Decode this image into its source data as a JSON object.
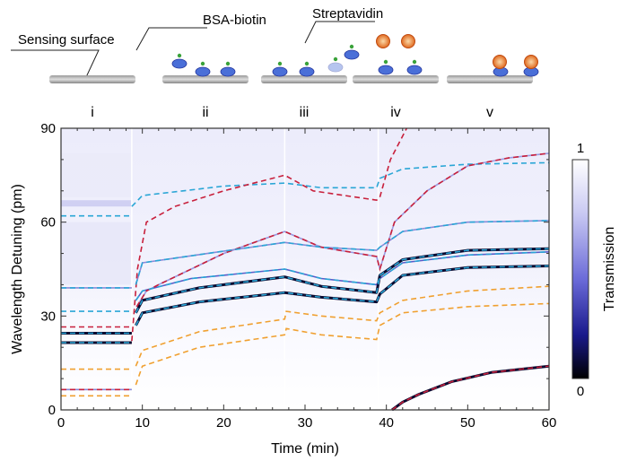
{
  "schematic": {
    "labels": {
      "surface": "Sensing surface",
      "bsa": "BSA-biotin",
      "strep": "Streptavidin"
    },
    "stages": [
      "i",
      "ii",
      "iii",
      "iv",
      "v"
    ]
  },
  "chart_data": {
    "type": "heatmap",
    "xlabel": "Time (min)",
    "ylabel": "Wavelength Detuning (pm)",
    "xlim": [
      0,
      60
    ],
    "ylim": [
      0,
      90
    ],
    "xticks": [
      0,
      10,
      20,
      30,
      40,
      50,
      60
    ],
    "yticks": [
      0,
      30,
      60,
      90
    ],
    "colorbar": {
      "label": "Transmission",
      "min": "0",
      "max": "1",
      "colors": [
        "#000000",
        "#1a1a8c",
        "#6a6ad8",
        "#c8c8f2",
        "#ffffff"
      ]
    },
    "stage_boundaries_min": [
      8.7,
      27.5,
      39
    ],
    "series": [
      {
        "color": "#2aa6d6",
        "trace": null,
        "points": [
          [
            0,
            62
          ],
          [
            8.7,
            62
          ]
        ]
      },
      {
        "color": "#2aa6d6",
        "trace": "#8a8ad8",
        "points": [
          [
            0,
            39
          ],
          [
            8.7,
            39
          ]
        ]
      },
      {
        "color": "#2aa6d6",
        "trace": null,
        "points": [
          [
            0,
            31.5
          ],
          [
            8.7,
            31.5
          ]
        ]
      },
      {
        "color": "#c8203c",
        "trace": null,
        "points": [
          [
            0,
            26.5
          ],
          [
            8.7,
            26.5
          ]
        ]
      },
      {
        "color": "#2aa6d6",
        "trace": "#0a0a30",
        "points": [
          [
            0,
            24.5
          ],
          [
            8.7,
            24.5
          ]
        ]
      },
      {
        "color": "#2aa6d6",
        "trace": "#0a0a30",
        "points": [
          [
            0,
            21.5
          ],
          [
            8.7,
            21.5
          ]
        ]
      },
      {
        "color": "#f0a030",
        "trace": null,
        "points": [
          [
            0,
            13
          ],
          [
            8.7,
            13
          ]
        ]
      },
      {
        "color": "#c8203c",
        "trace": "#8a8ad8",
        "points": [
          [
            0,
            6.5
          ],
          [
            8.7,
            6.5
          ]
        ]
      },
      {
        "color": "#f0a030",
        "trace": null,
        "points": [
          [
            0,
            4.5
          ],
          [
            8.7,
            4.5
          ]
        ]
      },
      {
        "color": "#2aa6d6",
        "trace": null,
        "points": [
          [
            8.7,
            65
          ],
          [
            10,
            68.5
          ],
          [
            15,
            70
          ],
          [
            20,
            71.5
          ],
          [
            27.5,
            72.5
          ],
          [
            32,
            71
          ],
          [
            38.8,
            71
          ],
          [
            39.2,
            74
          ],
          [
            42,
            77
          ],
          [
            50,
            78.5
          ],
          [
            60,
            79
          ]
        ]
      },
      {
        "color": "#c8203c",
        "trace": null,
        "points": [
          [
            8.7,
            22
          ],
          [
            9.4,
            45
          ],
          [
            10.5,
            60
          ],
          [
            14,
            65
          ],
          [
            20,
            70
          ],
          [
            27.5,
            75
          ],
          [
            31,
            70
          ],
          [
            38.8,
            67
          ],
          [
            39.2,
            68
          ],
          [
            40.5,
            80
          ],
          [
            42.5,
            90
          ]
        ]
      },
      {
        "color": "#c8203c",
        "trace": "#9a9ae0",
        "points": [
          [
            9.3,
            33
          ],
          [
            10.5,
            38
          ],
          [
            12,
            40
          ],
          [
            16,
            45
          ],
          [
            20,
            50
          ],
          [
            27.5,
            57
          ],
          [
            32,
            52
          ],
          [
            38.8,
            49
          ],
          [
            39.2,
            45
          ],
          [
            41,
            60
          ],
          [
            45,
            70
          ],
          [
            50,
            78
          ],
          [
            55,
            80.5
          ],
          [
            60,
            82
          ]
        ]
      },
      {
        "color": "#2aa6d6",
        "trace": "#8a8ad8",
        "points": [
          [
            9.2,
            40
          ],
          [
            10,
            47
          ],
          [
            14,
            48.5
          ],
          [
            18,
            50
          ],
          [
            27.5,
            53.5
          ],
          [
            32,
            52
          ],
          [
            38.8,
            51
          ],
          [
            39.2,
            52
          ],
          [
            42,
            57
          ],
          [
            50,
            60
          ],
          [
            60,
            60.5
          ]
        ]
      },
      {
        "color": "#2aa6d6",
        "trace": "#5a5ac8",
        "points": [
          [
            9.2,
            35
          ],
          [
            10,
            38
          ],
          [
            16,
            42
          ],
          [
            27.5,
            45
          ],
          [
            32,
            42
          ],
          [
            38.8,
            40
          ],
          [
            39.2,
            42
          ],
          [
            42,
            47
          ],
          [
            50,
            49.5
          ],
          [
            60,
            50.5
          ]
        ]
      },
      {
        "color": "#2aa6d6",
        "trace": "#0a0a30",
        "points": [
          [
            9.2,
            31
          ],
          [
            10,
            35
          ],
          [
            17,
            39
          ],
          [
            27.5,
            42.5
          ],
          [
            32,
            39.5
          ],
          [
            38.8,
            37.5
          ],
          [
            39.2,
            43
          ],
          [
            42,
            48
          ],
          [
            50,
            51
          ],
          [
            60,
            51.5
          ]
        ]
      },
      {
        "color": "#2aa6d6",
        "trace": "#0a0a30",
        "points": [
          [
            9.2,
            27
          ],
          [
            10,
            31
          ],
          [
            17,
            34.5
          ],
          [
            27.5,
            37.5
          ],
          [
            32,
            36
          ],
          [
            38.8,
            34.5
          ],
          [
            39.2,
            37
          ],
          [
            42,
            43
          ],
          [
            50,
            45.5
          ],
          [
            60,
            46
          ]
        ]
      },
      {
        "color": "#f0a030",
        "trace": null,
        "points": [
          [
            9.2,
            14
          ],
          [
            10,
            19
          ],
          [
            17,
            25
          ],
          [
            27.5,
            29
          ],
          [
            27.7,
            31.5
          ],
          [
            32,
            30
          ],
          [
            38.8,
            28.5
          ],
          [
            39.2,
            31
          ],
          [
            42,
            35
          ],
          [
            50,
            38
          ],
          [
            60,
            39.5
          ]
        ]
      },
      {
        "color": "#f0a030",
        "trace": null,
        "points": [
          [
            9.2,
            8
          ],
          [
            10,
            14
          ],
          [
            17,
            20
          ],
          [
            27.5,
            24
          ],
          [
            27.7,
            26
          ],
          [
            32,
            24
          ],
          [
            38.8,
            22.5
          ],
          [
            39.2,
            27
          ],
          [
            42,
            31
          ],
          [
            50,
            33
          ],
          [
            60,
            34
          ]
        ]
      },
      {
        "color": "#c8203c",
        "trace": "#0a0a30",
        "points": [
          [
            40.7,
            0
          ],
          [
            42,
            2.5
          ],
          [
            44,
            5
          ],
          [
            48,
            9
          ],
          [
            53,
            12
          ],
          [
            60,
            14
          ]
        ]
      }
    ]
  }
}
